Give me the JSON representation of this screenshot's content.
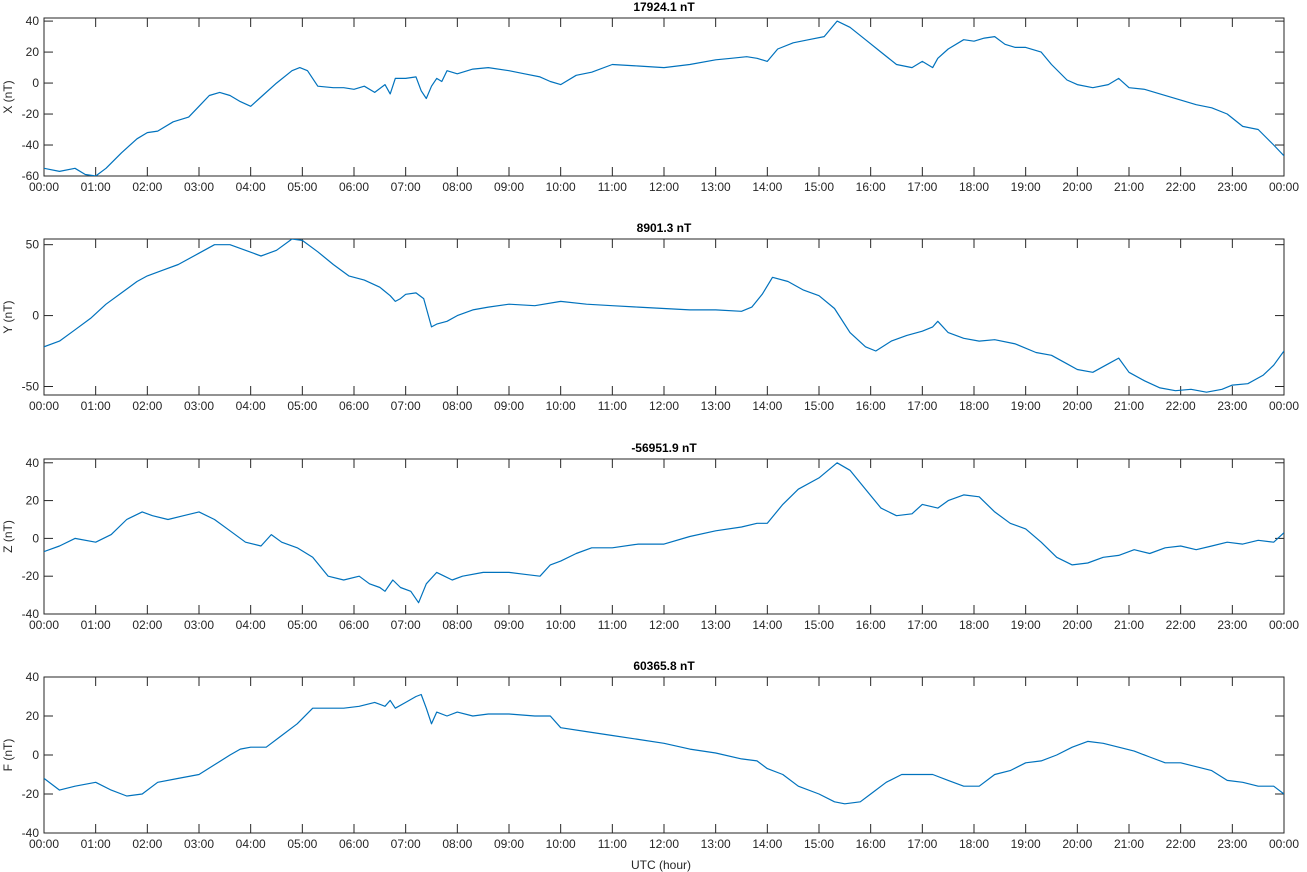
{
  "figure_xlabel": "UTC (hour)",
  "series_color": "#0072BD",
  "x_ticks": [
    "00:00",
    "01:00",
    "02:00",
    "03:00",
    "04:00",
    "05:00",
    "06:00",
    "07:00",
    "08:00",
    "09:00",
    "10:00",
    "11:00",
    "12:00",
    "13:00",
    "14:00",
    "15:00",
    "16:00",
    "17:00",
    "18:00",
    "19:00",
    "20:00",
    "21:00",
    "22:00",
    "23:00",
    "00:00"
  ],
  "chart_data": [
    {
      "type": "line",
      "title": "17924.1 nT",
      "ylabel": "X (nT)",
      "xlim": [
        0,
        24
      ],
      "ylim": [
        -60,
        42
      ],
      "yticks": [
        -60,
        -40,
        -20,
        0,
        20,
        40
      ],
      "x": [
        0,
        0.3,
        0.6,
        0.8,
        1.0,
        1.2,
        1.5,
        1.8,
        2.0,
        2.2,
        2.5,
        2.8,
        3.0,
        3.2,
        3.4,
        3.6,
        3.8,
        4.0,
        4.2,
        4.5,
        4.8,
        4.95,
        5.1,
        5.3,
        5.6,
        5.8,
        6.0,
        6.2,
        6.4,
        6.6,
        6.7,
        6.8,
        7.0,
        7.2,
        7.3,
        7.4,
        7.5,
        7.6,
        7.7,
        7.8,
        8.0,
        8.3,
        8.6,
        9.0,
        9.3,
        9.6,
        9.8,
        10.0,
        10.3,
        10.6,
        11.0,
        11.5,
        12.0,
        12.5,
        13.0,
        13.3,
        13.6,
        13.8,
        14.0,
        14.2,
        14.5,
        14.8,
        15.1,
        15.35,
        15.6,
        15.9,
        16.2,
        16.5,
        16.8,
        17.0,
        17.2,
        17.3,
        17.5,
        17.8,
        18.0,
        18.2,
        18.4,
        18.6,
        18.8,
        19.0,
        19.3,
        19.5,
        19.8,
        20.0,
        20.3,
        20.6,
        20.8,
        21.0,
        21.3,
        21.6,
        22.0,
        22.3,
        22.6,
        22.9,
        23.2,
        23.5,
        23.8,
        24.0
      ],
      "values": [
        -55,
        -57,
        -55,
        -59,
        -60,
        -55,
        -45,
        -36,
        -32,
        -31,
        -25,
        -22,
        -15,
        -8,
        -6,
        -8,
        -12,
        -15,
        -9,
        0,
        8,
        10,
        8,
        -2,
        -3,
        -3,
        -4,
        -2,
        -6,
        -1,
        -7,
        3,
        3,
        4,
        -5,
        -10,
        -2,
        3,
        1,
        8,
        6,
        9,
        10,
        8,
        6,
        4,
        1,
        -1,
        5,
        7,
        12,
        11,
        10,
        12,
        15,
        16,
        17,
        16,
        14,
        22,
        26,
        28,
        30,
        40,
        36,
        28,
        20,
        12,
        10,
        14,
        10,
        16,
        22,
        28,
        27,
        29,
        30,
        25,
        23,
        23,
        20,
        12,
        2,
        -1,
        -3,
        -1,
        3,
        -3,
        -4,
        -7,
        -11,
        -14,
        -16,
        -20,
        -28,
        -30,
        -40,
        -47
      ]
    },
    {
      "type": "line",
      "title": "8901.3 nT",
      "ylabel": "Y (nT)",
      "xlim": [
        0,
        24
      ],
      "ylim": [
        -56,
        54
      ],
      "yticks": [
        -50,
        0,
        50
      ],
      "x": [
        0,
        0.3,
        0.6,
        0.9,
        1.2,
        1.5,
        1.8,
        2.0,
        2.3,
        2.6,
        3.0,
        3.3,
        3.6,
        3.9,
        4.2,
        4.5,
        4.8,
        5.0,
        5.3,
        5.6,
        5.9,
        6.2,
        6.5,
        6.7,
        6.8,
        6.9,
        7.0,
        7.2,
        7.35,
        7.5,
        7.6,
        7.8,
        8.0,
        8.3,
        8.6,
        9.0,
        9.5,
        10.0,
        10.5,
        11.0,
        11.5,
        12.0,
        12.5,
        13.0,
        13.5,
        13.7,
        13.9,
        14.1,
        14.4,
        14.7,
        15.0,
        15.3,
        15.6,
        15.9,
        16.1,
        16.4,
        16.7,
        17.0,
        17.2,
        17.3,
        17.5,
        17.8,
        18.1,
        18.4,
        18.8,
        19.2,
        19.5,
        19.8,
        20.0,
        20.3,
        20.6,
        20.8,
        21.0,
        21.3,
        21.6,
        21.9,
        22.2,
        22.5,
        22.8,
        23.0,
        23.3,
        23.6,
        23.8,
        24.0
      ],
      "values": [
        -22,
        -18,
        -10,
        -2,
        8,
        16,
        24,
        28,
        32,
        36,
        44,
        50,
        50,
        46,
        42,
        46,
        54,
        53,
        45,
        36,
        28,
        25,
        20,
        14,
        10,
        12,
        15,
        16,
        12,
        -8,
        -6,
        -4,
        0,
        4,
        6,
        8,
        7,
        10,
        8,
        7,
        6,
        5,
        4,
        4,
        3,
        6,
        15,
        27,
        24,
        18,
        14,
        5,
        -12,
        -22,
        -25,
        -18,
        -14,
        -11,
        -8,
        -4,
        -12,
        -16,
        -18,
        -17,
        -20,
        -26,
        -28,
        -34,
        -38,
        -40,
        -34,
        -30,
        -40,
        -46,
        -51,
        -53,
        -52,
        -54,
        -52,
        -49,
        -48,
        -42,
        -35,
        -25
      ]
    },
    {
      "type": "line",
      "title": "-56951.9 nT",
      "ylabel": "Z (nT)",
      "xlim": [
        0,
        24
      ],
      "ylim": [
        -40,
        42
      ],
      "yticks": [
        -40,
        -20,
        0,
        20,
        40
      ],
      "x": [
        0,
        0.3,
        0.6,
        1.0,
        1.3,
        1.6,
        1.9,
        2.1,
        2.4,
        2.7,
        3.0,
        3.3,
        3.6,
        3.9,
        4.2,
        4.4,
        4.6,
        4.9,
        5.2,
        5.5,
        5.8,
        6.1,
        6.3,
        6.5,
        6.6,
        6.75,
        6.9,
        7.1,
        7.25,
        7.4,
        7.6,
        7.75,
        7.9,
        8.1,
        8.5,
        9.0,
        9.3,
        9.6,
        9.8,
        10.0,
        10.3,
        10.6,
        11.0,
        11.5,
        12.0,
        12.5,
        13.0,
        13.5,
        13.8,
        14.0,
        14.3,
        14.6,
        15.0,
        15.35,
        15.6,
        15.9,
        16.2,
        16.5,
        16.8,
        17.0,
        17.3,
        17.5,
        17.8,
        18.1,
        18.4,
        18.7,
        19.0,
        19.3,
        19.6,
        19.9,
        20.2,
        20.5,
        20.8,
        21.1,
        21.4,
        21.7,
        22.0,
        22.3,
        22.6,
        22.9,
        23.2,
        23.5,
        23.8,
        24.0
      ],
      "values": [
        -7,
        -4,
        0,
        -2,
        2,
        10,
        14,
        12,
        10,
        12,
        14,
        10,
        4,
        -2,
        -4,
        2,
        -2,
        -5,
        -10,
        -20,
        -22,
        -20,
        -24,
        -26,
        -28,
        -22,
        -26,
        -28,
        -34,
        -24,
        -18,
        -20,
        -22,
        -20,
        -18,
        -18,
        -19,
        -20,
        -14,
        -12,
        -8,
        -5,
        -5,
        -3,
        -3,
        1,
        4,
        6,
        8,
        8,
        18,
        26,
        32,
        40,
        36,
        26,
        16,
        12,
        13,
        18,
        16,
        20,
        23,
        22,
        14,
        8,
        5,
        -2,
        -10,
        -14,
        -13,
        -10,
        -9,
        -6,
        -8,
        -5,
        -4,
        -6,
        -4,
        -2,
        -3,
        -1,
        -2,
        3
      ]
    },
    {
      "type": "line",
      "title": "60365.8 nT",
      "ylabel": "F (nT)",
      "xlim": [
        0,
        24
      ],
      "ylim": [
        -40,
        40
      ],
      "yticks": [
        -40,
        -20,
        0,
        20,
        40
      ],
      "x": [
        0,
        0.3,
        0.6,
        1.0,
        1.3,
        1.6,
        1.9,
        2.2,
        2.6,
        3.0,
        3.3,
        3.6,
        3.8,
        4.0,
        4.3,
        4.6,
        4.9,
        5.2,
        5.5,
        5.8,
        6.1,
        6.4,
        6.6,
        6.7,
        6.8,
        7.0,
        7.2,
        7.3,
        7.4,
        7.5,
        7.6,
        7.8,
        8.0,
        8.3,
        8.6,
        9.0,
        9.5,
        9.8,
        10.0,
        10.5,
        11.0,
        11.5,
        12.0,
        12.5,
        13.0,
        13.5,
        13.8,
        14.0,
        14.3,
        14.6,
        15.0,
        15.3,
        15.5,
        15.8,
        16.0,
        16.3,
        16.6,
        16.9,
        17.2,
        17.5,
        17.8,
        18.1,
        18.4,
        18.7,
        19.0,
        19.3,
        19.6,
        19.9,
        20.2,
        20.5,
        20.8,
        21.1,
        21.4,
        21.7,
        22.0,
        22.3,
        22.6,
        22.9,
        23.2,
        23.5,
        23.8,
        24.0
      ],
      "values": [
        -12,
        -18,
        -16,
        -14,
        -18,
        -21,
        -20,
        -14,
        -12,
        -10,
        -5,
        0,
        3,
        4,
        4,
        10,
        16,
        24,
        24,
        24,
        25,
        27,
        25,
        28,
        24,
        27,
        30,
        31,
        24,
        16,
        22,
        20,
        22,
        20,
        21,
        21,
        20,
        20,
        14,
        12,
        10,
        8,
        6,
        3,
        1,
        -2,
        -3,
        -7,
        -10,
        -16,
        -20,
        -24,
        -25,
        -24,
        -20,
        -14,
        -10,
        -10,
        -10,
        -13,
        -16,
        -16,
        -10,
        -8,
        -4,
        -3,
        0,
        4,
        7,
        6,
        4,
        2,
        -1,
        -4,
        -4,
        -6,
        -8,
        -13,
        -14,
        -16,
        -16,
        -20
      ]
    }
  ]
}
